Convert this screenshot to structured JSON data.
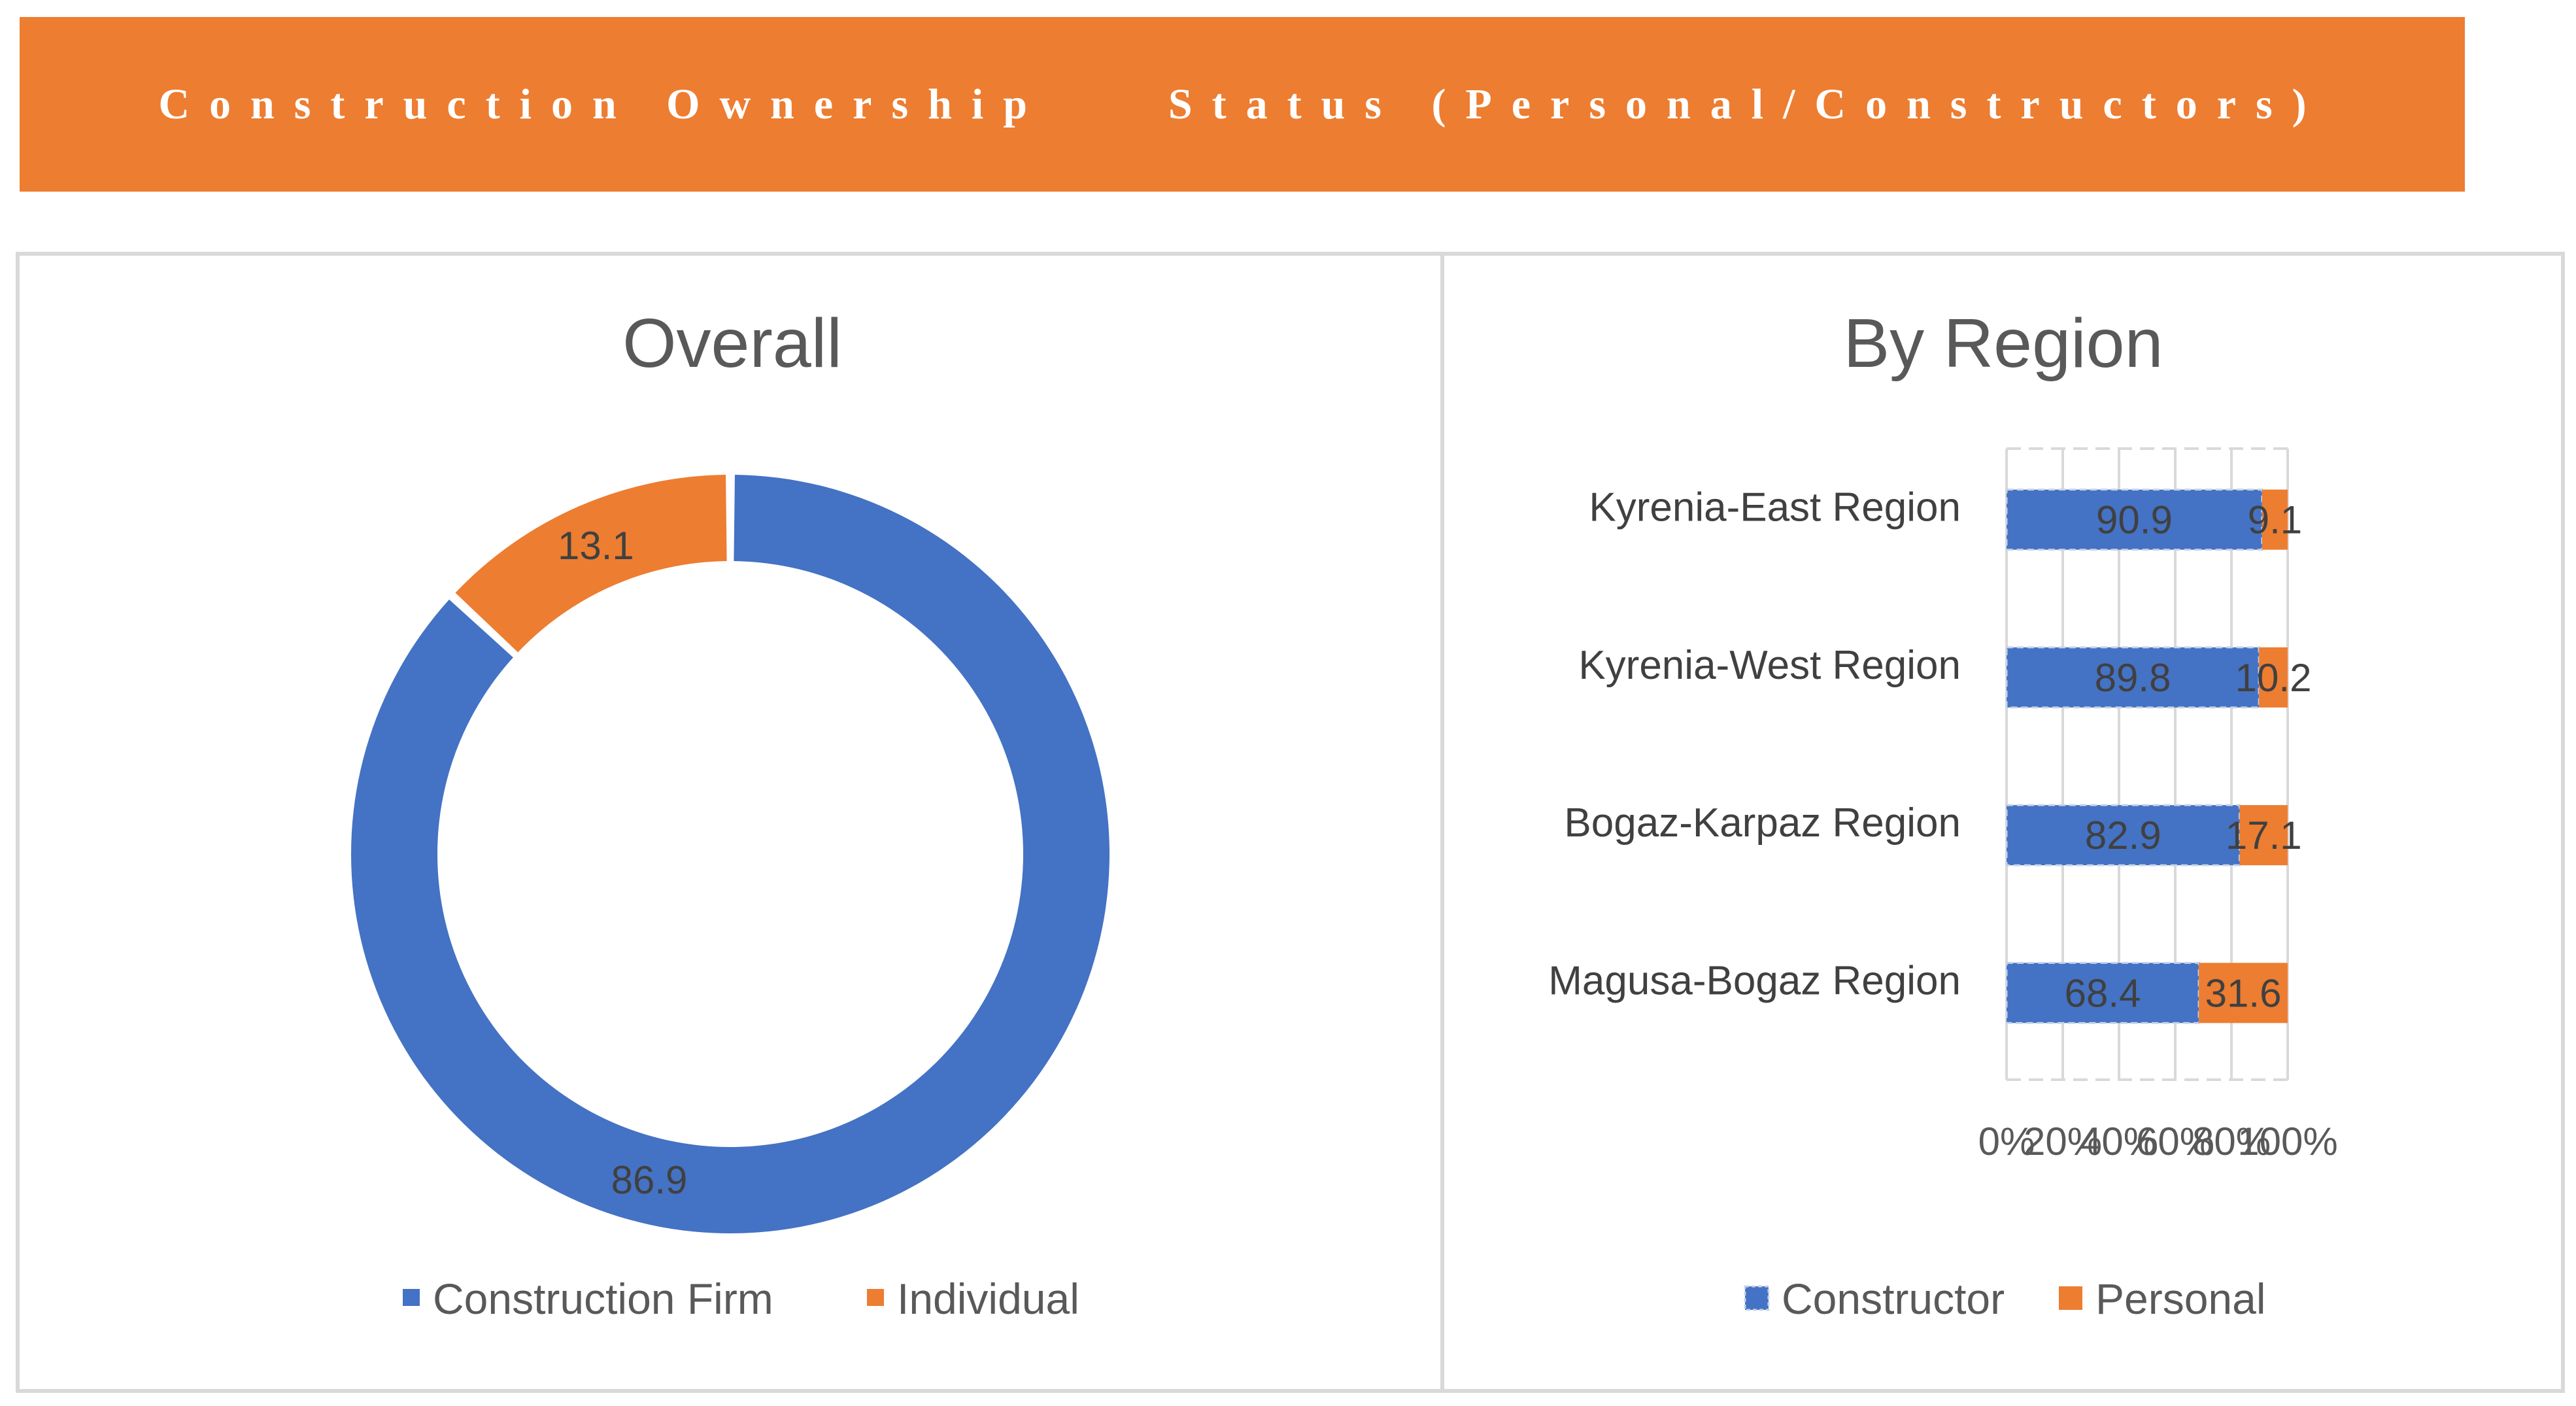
{
  "banner": {
    "title": "Construction Ownership    Status (Personal/Constructors)",
    "background": "#ED7D31"
  },
  "colors": {
    "blue": "#4472C4",
    "orange": "#ED7D31",
    "grid": "#d9d9d9"
  },
  "chart_data": [
    {
      "type": "pie",
      "variant": "doughnut",
      "title": "Overall",
      "categories": [
        "Construction Firm",
        "Individual"
      ],
      "values": [
        86.9,
        13.1
      ],
      "labels": [
        "86.9",
        "13.1"
      ],
      "legend": "bottom"
    },
    {
      "type": "bar",
      "orientation": "horizontal",
      "stacked": "percent",
      "title": "By Region",
      "categories": [
        "Kyrenia-East Region",
        "Kyrenia-West Region",
        "Bogaz-Karpaz Region",
        "Magusa-Bogaz Region"
      ],
      "series": [
        {
          "name": "Constructor",
          "values": [
            90.9,
            89.8,
            82.9,
            68.4
          ],
          "labels": [
            "90.9",
            "89.8",
            "82.9",
            "68.4"
          ]
        },
        {
          "name": "Personal",
          "values": [
            9.1,
            10.2,
            17.1,
            31.6
          ],
          "labels": [
            "9.1",
            "10.2",
            "17.1",
            "31.6"
          ]
        }
      ],
      "xticks": [
        "0%",
        "20%",
        "40%",
        "60%",
        "80%",
        "100%"
      ],
      "xlim": [
        0,
        100
      ],
      "legend": "bottom",
      "grid": true
    }
  ]
}
